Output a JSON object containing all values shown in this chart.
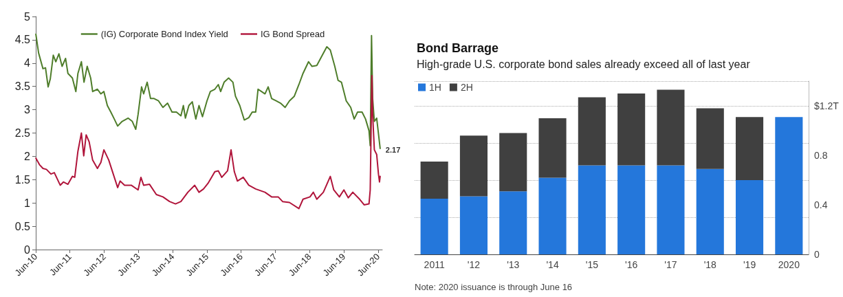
{
  "chart_data": [
    {
      "type": "line",
      "legend": "top",
      "marker": "none",
      "line_style": "solid",
      "grid": false,
      "xlim": [
        "2010-06",
        "2020-07-16"
      ],
      "xticks": [
        {
          "value": "2010-06",
          "label": "Jun-10"
        },
        {
          "value": "2011-06",
          "label": "Jun-11"
        },
        {
          "value": "2012-06",
          "label": "Jun-12"
        },
        {
          "value": "2013-06",
          "label": "Jun-13"
        },
        {
          "value": "2014-06",
          "label": "Jun-14"
        },
        {
          "value": "2015-06",
          "label": "Jun-15"
        },
        {
          "value": "2016-06",
          "label": "Jun-16"
        },
        {
          "value": "2017-06",
          "label": "Jun-17"
        },
        {
          "value": "2018-06",
          "label": "Jun-18"
        },
        {
          "value": "2019-06",
          "label": "Jun-19"
        },
        {
          "value": "2020-06",
          "label": "Jun-20"
        }
      ],
      "ylim": [
        0,
        5
      ],
      "yticks": [
        0,
        0.5,
        1,
        1.5,
        2,
        2.5,
        3,
        3.5,
        4,
        4.5,
        5
      ],
      "annotations": [
        {
          "text": "2.17",
          "x": "2020-06-23",
          "y": 2.17
        }
      ],
      "series": [
        {
          "name": "(IG) Corporate Bond Index Yield",
          "color": "#4e7d2a",
          "x": [
            "2010-06-02",
            "2010-07-01",
            "2010-08-17",
            "2010-09-13",
            "2010-10-11",
            "2010-11-03",
            "2010-12-05",
            "2011-01-01",
            "2011-02-03",
            "2011-03-09",
            "2011-04-15",
            "2011-05-10",
            "2011-06-27",
            "2011-08-03",
            "2011-08-25",
            "2011-10-01",
            "2011-10-29",
            "2011-12-02",
            "2012-01-08",
            "2012-01-29",
            "2012-03-20",
            "2012-04-26",
            "2012-05-28",
            "2012-07-04",
            "2012-08-10",
            "2012-09-16",
            "2012-10-22",
            "2012-12-09",
            "2013-02-10",
            "2013-03-27",
            "2013-05-03",
            "2013-05-28",
            "2013-07-04",
            "2013-07-26",
            "2013-09-02",
            "2013-10-08",
            "2013-11-14",
            "2014-01-01",
            "2014-02-17",
            "2014-04-08",
            "2014-05-25",
            "2014-07-11",
            "2014-08-28",
            "2014-09-23",
            "2014-10-15",
            "2014-11-21",
            "2014-12-27",
            "2015-02-03",
            "2015-03-09",
            "2015-04-15",
            "2015-06-02",
            "2015-07-08",
            "2015-08-25",
            "2015-10-01",
            "2015-10-26",
            "2015-12-02",
            "2016-01-19",
            "2016-03-05",
            "2016-04-01",
            "2016-05-17",
            "2016-07-04",
            "2016-08-21",
            "2016-09-27",
            "2016-11-03",
            "2016-11-28",
            "2017-01-04",
            "2017-02-10",
            "2017-03-16",
            "2017-04-22",
            "2017-06-09",
            "2017-07-26",
            "2017-09-13",
            "2017-10-29",
            "2017-12-20",
            "2018-02-07",
            "2018-03-23",
            "2018-05-21",
            "2018-06-27",
            "2018-08-17",
            "2018-10-04",
            "2018-12-02",
            "2019-01-08",
            "2019-02-25",
            "2019-04-01",
            "2019-05-07",
            "2019-06-27",
            "2019-08-14",
            "2019-09-20",
            "2019-10-26",
            "2019-12-13",
            "2020-01-19",
            "2020-02-25",
            "2020-03-09",
            "2020-03-23",
            "2020-04-04",
            "2020-04-22",
            "2020-05-17",
            "2020-06-23"
          ],
          "values": [
            4.62,
            4.22,
            3.88,
            3.9,
            3.49,
            3.66,
            4.17,
            4.03,
            4.2,
            3.93,
            4.1,
            3.78,
            3.68,
            3.39,
            3.78,
            4.03,
            3.59,
            3.93,
            3.68,
            3.39,
            3.44,
            3.34,
            3.39,
            3.09,
            2.95,
            2.8,
            2.65,
            2.75,
            2.82,
            2.75,
            2.58,
            2.9,
            3.49,
            3.34,
            3.59,
            3.24,
            3.24,
            3.19,
            3.05,
            3.14,
            2.95,
            2.95,
            2.87,
            3.09,
            2.82,
            3.09,
            3.17,
            2.8,
            3.09,
            2.85,
            3.19,
            3.39,
            3.44,
            3.54,
            3.39,
            3.59,
            3.68,
            3.59,
            3.29,
            3.09,
            2.78,
            2.83,
            2.95,
            2.95,
            3.44,
            3.39,
            3.34,
            3.49,
            3.24,
            3.19,
            3.14,
            3.05,
            3.19,
            3.29,
            3.54,
            3.78,
            4.03,
            3.93,
            3.95,
            4.13,
            4.35,
            4.28,
            3.93,
            3.63,
            3.59,
            3.19,
            3.05,
            2.8,
            2.95,
            2.95,
            2.8,
            2.55,
            2.23,
            4.59,
            3.24,
            2.75,
            2.82,
            2.17
          ]
        },
        {
          "name": "IG Bond Spread",
          "color": "#b0143a",
          "x": [
            "2010-06-02",
            "2010-07-11",
            "2010-08-17",
            "2010-09-23",
            "2010-11-10",
            "2010-12-16",
            "2011-02-17",
            "2011-03-23",
            "2011-05-10",
            "2011-06-27",
            "2011-07-22",
            "2011-08-25",
            "2011-10-01",
            "2011-10-26",
            "2011-11-21",
            "2011-12-23",
            "2012-01-29",
            "2012-03-20",
            "2012-04-26",
            "2012-05-28",
            "2012-07-19",
            "2012-09-05",
            "2012-10-22",
            "2012-11-17",
            "2013-01-04",
            "2013-03-16",
            "2013-05-28",
            "2013-06-27",
            "2013-07-26",
            "2013-09-27",
            "2013-12-09",
            "2014-02-17",
            "2014-04-29",
            "2014-07-01",
            "2014-08-28",
            "2014-11-10",
            "2015-01-22",
            "2015-03-09",
            "2015-04-26",
            "2015-06-13",
            "2015-08-25",
            "2015-10-01",
            "2015-11-07",
            "2016-01-08",
            "2016-02-14",
            "2016-03-20",
            "2016-04-22",
            "2016-06-23",
            "2016-08-21",
            "2016-11-03",
            "2017-02-10",
            "2017-04-22",
            "2017-07-01",
            "2017-08-17",
            "2017-10-29",
            "2018-02-07",
            "2018-03-23",
            "2018-06-05",
            "2018-07-11",
            "2018-08-17",
            "2018-10-26",
            "2019-01-08",
            "2019-02-14",
            "2019-04-15",
            "2019-06-02",
            "2019-07-19",
            "2019-09-05",
            "2019-11-17",
            "2020-01-04",
            "2020-02-25",
            "2020-03-09",
            "2020-03-27",
            "2020-04-04",
            "2020-04-22",
            "2020-05-17",
            "2020-06-05",
            "2020-06-16",
            "2020-06-23"
          ],
          "values": [
            1.96,
            1.82,
            1.74,
            1.72,
            1.62,
            1.65,
            1.38,
            1.45,
            1.4,
            1.57,
            1.55,
            2.11,
            2.5,
            2.01,
            2.46,
            2.31,
            1.92,
            1.74,
            1.87,
            2.14,
            1.92,
            1.62,
            1.33,
            1.47,
            1.38,
            1.38,
            1.28,
            1.55,
            1.38,
            1.4,
            1.18,
            1.13,
            1.03,
            0.98,
            1.03,
            1.23,
            1.38,
            1.23,
            1.3,
            1.42,
            1.67,
            1.69,
            1.55,
            1.69,
            2.14,
            1.67,
            1.47,
            1.55,
            1.38,
            1.3,
            1.23,
            1.13,
            1.13,
            1.03,
            1.01,
            0.88,
            1.08,
            1.13,
            1.23,
            1.08,
            1.23,
            1.57,
            1.28,
            1.13,
            1.28,
            1.11,
            1.23,
            1.08,
            0.96,
            0.98,
            1.28,
            3.73,
            2.9,
            2.14,
            2.04,
            1.62,
            1.45,
            1.57
          ]
        }
      ]
    },
    {
      "type": "bar",
      "stacked": true,
      "title": "Bond Barrage",
      "subtitle": "High-grade U.S. corporate bond sales already exceed all of last year",
      "legend": "top left",
      "grid": "y",
      "categories": [
        "2011",
        "'12",
        "'13",
        "'14",
        "'15",
        "'16",
        "'17",
        "'18",
        "'19",
        "2020"
      ],
      "ylim": [
        0,
        1.4
      ],
      "yticks": [
        0,
        0.4,
        0.8,
        {
          "value": 1.2,
          "label": "$1.2T"
        }
      ],
      "annotations": [
        "Note: 2020 issuance is through June 16"
      ],
      "series": [
        {
          "name": "1H",
          "color": "#2477db",
          "values": [
            0.45,
            0.47,
            0.51,
            0.62,
            0.72,
            0.72,
            0.72,
            0.69,
            0.6,
            1.11
          ]
        },
        {
          "name": "2H",
          "color": "#404040",
          "values": [
            0.3,
            0.49,
            0.47,
            0.48,
            0.55,
            0.58,
            0.61,
            0.49,
            0.51,
            null
          ]
        }
      ]
    }
  ]
}
